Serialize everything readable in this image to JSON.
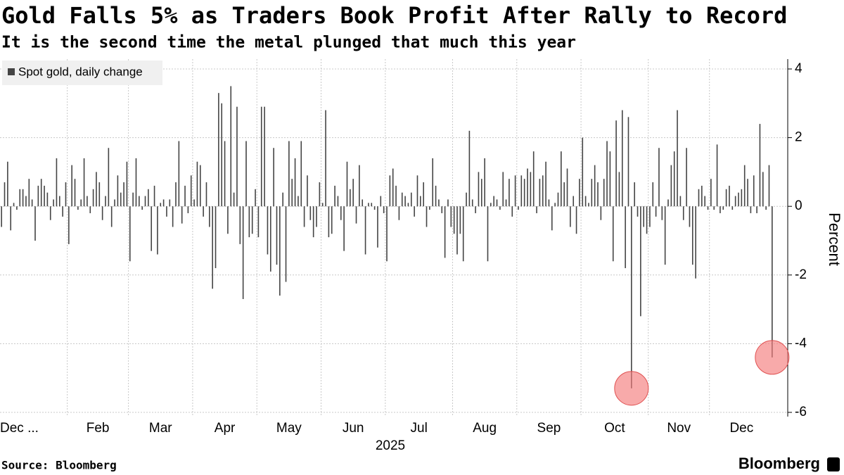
{
  "chart_data": {
    "type": "bar",
    "title": "Gold Falls 5% as Traders Book Profit After Rally to Record",
    "subtitle": "It is the second time the metal plunged that much this year",
    "y_axis_label": "Percent",
    "x_axis_label": "2025",
    "source": "Source: Bloomberg",
    "brand": "Bloomberg",
    "legend_position": "upper left",
    "grid": true,
    "highlight_color": "#f47c7c",
    "highlighted": [
      206,
      252
    ],
    "ylim": [
      -6,
      4
    ],
    "yticks": [
      -6,
      -4,
      -2,
      0,
      2,
      4
    ],
    "categories": [
      "Dec ...",
      null,
      null,
      null,
      null,
      null,
      null,
      null,
      null,
      null,
      null,
      null,
      null,
      null,
      null,
      null,
      null,
      null,
      null,
      null,
      null,
      null,
      "Feb",
      null,
      null,
      null,
      null,
      null,
      null,
      null,
      null,
      null,
      null,
      null,
      null,
      null,
      null,
      null,
      null,
      null,
      null,
      null,
      "Mar",
      null,
      null,
      null,
      null,
      null,
      null,
      null,
      null,
      null,
      null,
      null,
      null,
      null,
      null,
      null,
      null,
      null,
      null,
      null,
      null,
      "Apr",
      null,
      null,
      null,
      null,
      null,
      null,
      null,
      null,
      null,
      null,
      null,
      null,
      null,
      null,
      null,
      null,
      null,
      null,
      null,
      null,
      "May",
      null,
      null,
      null,
      null,
      null,
      null,
      null,
      null,
      null,
      null,
      null,
      null,
      null,
      null,
      null,
      null,
      null,
      null,
      null,
      null,
      "Jun",
      null,
      null,
      null,
      null,
      null,
      null,
      null,
      null,
      null,
      null,
      null,
      null,
      null,
      null,
      null,
      null,
      null,
      null,
      null,
      null,
      "Jul",
      null,
      null,
      null,
      null,
      null,
      null,
      null,
      null,
      null,
      null,
      null,
      null,
      null,
      null,
      null,
      null,
      null,
      null,
      null,
      null,
      null,
      "Aug",
      null,
      null,
      null,
      null,
      null,
      null,
      null,
      null,
      null,
      null,
      null,
      null,
      null,
      null,
      null,
      null,
      null,
      null,
      null,
      null,
      "Sep",
      null,
      null,
      null,
      null,
      null,
      null,
      null,
      null,
      null,
      null,
      null,
      null,
      null,
      null,
      null,
      null,
      null,
      null,
      null,
      null,
      "Oct",
      null,
      null,
      null,
      null,
      null,
      null,
      null,
      null,
      null,
      null,
      null,
      null,
      null,
      null,
      null,
      null,
      null,
      null,
      null,
      null,
      null,
      "Nov",
      null,
      null,
      null,
      null,
      null,
      null,
      null,
      null,
      null,
      null,
      null,
      null,
      null,
      null,
      null,
      null,
      null,
      null,
      null,
      "Dec",
      null,
      null,
      null,
      null,
      null,
      null,
      null,
      null,
      null,
      null,
      null,
      null,
      null,
      null,
      null,
      null,
      null,
      null,
      null,
      null
    ],
    "series": [
      {
        "name": "Spot gold, daily change",
        "color": "#444444",
        "values": [
          -0.6,
          0.7,
          1.3,
          -0.7,
          0.1,
          -0.1,
          0.5,
          0.5,
          0.3,
          0.8,
          0.2,
          -1.0,
          0.6,
          0.8,
          0.6,
          0.4,
          -0.4,
          0.2,
          1.4,
          0.3,
          -0.3,
          0.7,
          -1.1,
          1.2,
          0.8,
          -0.1,
          0.2,
          1.4,
          0.3,
          -0.2,
          0.5,
          1.0,
          0.7,
          -0.4,
          0.3,
          1.7,
          -0.6,
          0.2,
          0.9,
          0.4,
          0.7,
          1.3,
          -1.6,
          0.4,
          1.4,
          0.3,
          -0.1,
          0.3,
          0.5,
          -1.3,
          0.6,
          -1.4,
          0.1,
          0.2,
          -0.3,
          0.2,
          -0.6,
          0.7,
          1.9,
          -0.5,
          0.6,
          -0.2,
          0.9,
          0.2,
          1.3,
          1.2,
          -0.3,
          0.7,
          -0.6,
          -2.4,
          -1.8,
          3.3,
          3.0,
          1.9,
          -0.8,
          3.5,
          0.4,
          2.9,
          -1.1,
          -2.7,
          1.9,
          -0.9,
          -0.8,
          0.5,
          -0.9,
          2.9,
          2.9,
          -1.4,
          -1.9,
          1.7,
          -1.7,
          -2.6,
          0.4,
          -2.2,
          1.9,
          0.8,
          1.4,
          0.3,
          1.9,
          -0.6,
          0.9,
          -0.4,
          -0.9,
          -0.6,
          0.7,
          0.1,
          2.8,
          -0.9,
          -0.8,
          0.6,
          0.3,
          -0.4,
          -1.3,
          1.3,
          0.5,
          0.8,
          -0.5,
          1.2,
          0.2,
          -1.4,
          0.1,
          0.1,
          -0.1,
          -1.2,
          0.3,
          -0.2,
          -1.6,
          0.9,
          1.1,
          0.6,
          -0.4,
          0.4,
          0.3,
          0.1,
          0.4,
          -0.3,
          0.9,
          0.3,
          0.7,
          -0.6,
          -0.1,
          1.4,
          0.6,
          0.2,
          -0.2,
          -1.5,
          0.2,
          -0.6,
          -0.8,
          -1.4,
          -0.8,
          -1.6,
          0.4,
          2.2,
          0.2,
          -0.2,
          1.0,
          0.8,
          1.4,
          -1.6,
          0.1,
          0.3,
          0.2,
          -0.1,
          1.0,
          0.2,
          0.8,
          -0.3,
          0.9,
          -0.1,
          0.9,
          0.8,
          1.1,
          1.0,
          1.6,
          -0.2,
          0.8,
          0.9,
          1.3,
          0.2,
          -0.7,
          0.1,
          0.4,
          1.6,
          0.7,
          1.1,
          -0.6,
          0.3,
          -0.8,
          0.8,
          2.0,
          0.3,
          0.1,
          0.8,
          1.2,
          0.7,
          -0.4,
          0.8,
          1.9,
          1.6,
          -1.6,
          2.5,
          1.0,
          2.8,
          -1.8,
          2.6,
          -5.3,
          0.7,
          -0.3,
          -3.2,
          -0.6,
          -0.8,
          -0.6,
          0.7,
          -0.3,
          1.7,
          -0.4,
          -1.7,
          0.2,
          1.2,
          1.6,
          2.8,
          0.3,
          -0.4,
          1.7,
          -0.6,
          -1.7,
          -2.1,
          0.5,
          0.6,
          0.3,
          -0.1,
          0.8,
          -0.1,
          1.8,
          -0.2,
          -0.1,
          0.5,
          0.6,
          -0.1,
          0.3,
          0.4,
          0.5,
          1.2,
          0.8,
          -0.2,
          0.9,
          -0.2,
          2.4,
          1.0,
          -0.1,
          1.2,
          -4.4
        ]
      }
    ]
  }
}
